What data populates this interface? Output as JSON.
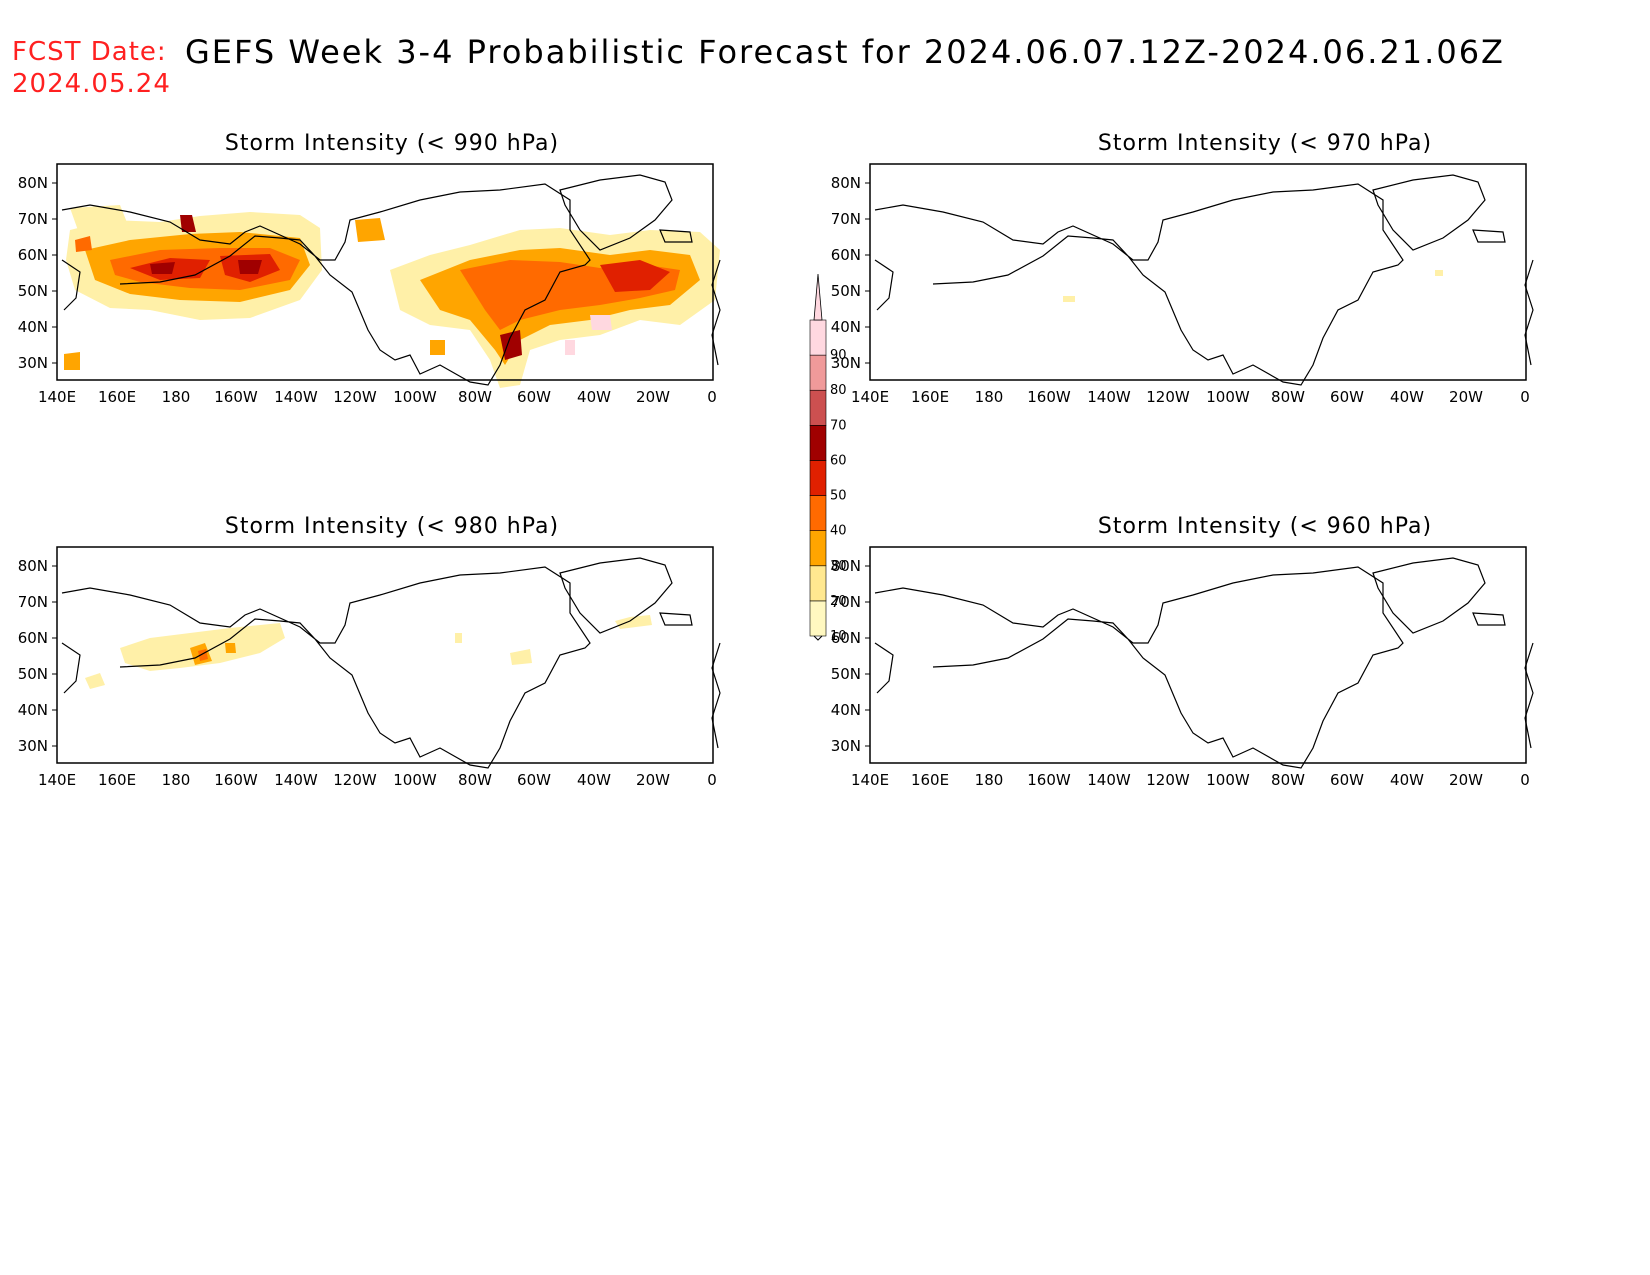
{
  "header": {
    "fcst_label": "FCST Date:",
    "fcst_date": "2024.05.24",
    "title": "GEFS Week 3-4 Probabilistic Forecast for 2024.06.07.12Z-2024.06.21.06Z"
  },
  "axes": {
    "lat_ticks": [
      "80N",
      "70N",
      "60N",
      "50N",
      "40N",
      "30N"
    ],
    "lon_ticks": [
      "140E",
      "160E",
      "180",
      "160W",
      "140W",
      "120W",
      "100W",
      "80W",
      "60W",
      "40W",
      "20W",
      "0"
    ]
  },
  "panels": [
    {
      "id": "p990",
      "title": "Storm Intensity (< 990 hPa)"
    },
    {
      "id": "p970",
      "title": "Storm Intensity (< 970 hPa)"
    },
    {
      "id": "p980",
      "title": "Storm Intensity (< 980 hPa)"
    },
    {
      "id": "p960",
      "title": "Storm Intensity (< 960 hPa)"
    }
  ],
  "colorbar": {
    "levels": [
      "10",
      "20",
      "30",
      "40",
      "50",
      "60",
      "70",
      "80",
      "90"
    ],
    "colors": [
      "#fff8c0",
      "#ffe890",
      "#ffa500",
      "#ff6a00",
      "#e02000",
      "#a00000",
      "#cc5050",
      "#f09a9a",
      "#ffd8e0"
    ]
  }
}
